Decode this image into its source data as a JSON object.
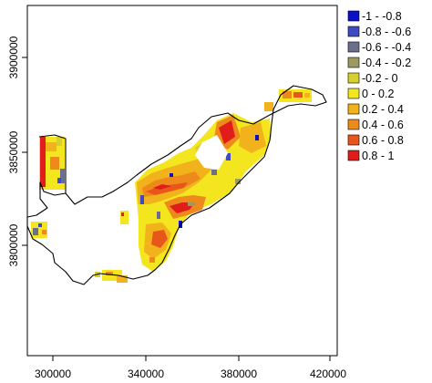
{
  "map": {
    "x_ticks": [
      "300000",
      "340000",
      "380000",
      "420000"
    ],
    "y_ticks": [
      "3800000",
      "3850000",
      "3900000"
    ],
    "legend": [
      {
        "label": "-1 - -0.8",
        "color": "#0a10c8"
      },
      {
        "label": "-0.8 - -0.6",
        "color": "#3f4bc2"
      },
      {
        "label": "-0.6 - -0.4",
        "color": "#6b6f8c"
      },
      {
        "label": "-0.4 - -0.2",
        "color": "#9d9a60"
      },
      {
        "label": "-0.2 - 0",
        "color": "#d7cf2e"
      },
      {
        "label": "0 - 0.2",
        "color": "#f3e51e"
      },
      {
        "label": "0.2 - 0.4",
        "color": "#f2b21b"
      },
      {
        "label": "0.4 - 0.6",
        "color": "#ee8a1b"
      },
      {
        "label": "0.6 - 0.8",
        "color": "#e8561a"
      },
      {
        "label": "0.8 - 1",
        "color": "#e01d1b"
      }
    ]
  }
}
